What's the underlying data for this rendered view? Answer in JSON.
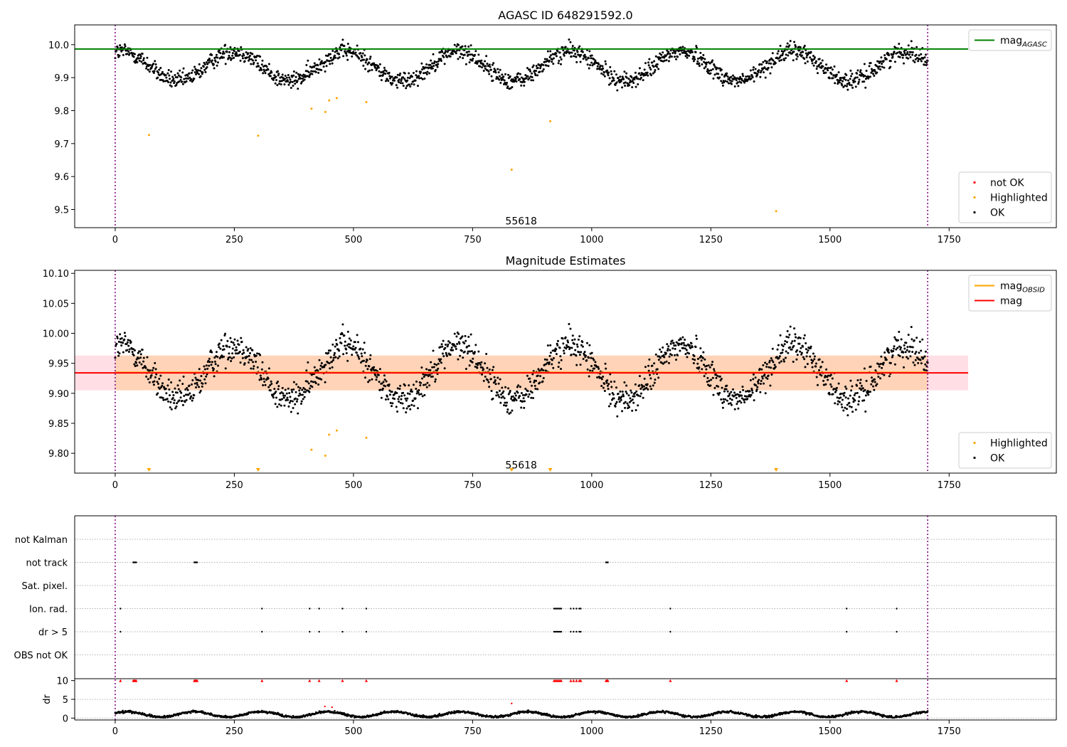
{
  "chart_data": [
    {
      "type": "scatter",
      "title": "AGASC ID 648291592.0",
      "xlim": [
        -85,
        1975
      ],
      "ylim": [
        9.445,
        10.06
      ],
      "xticks": [
        0,
        250,
        500,
        750,
        1000,
        1250,
        1500,
        1750
      ],
      "yticks": [
        9.5,
        9.6,
        9.7,
        9.8,
        9.9,
        10.0
      ],
      "ytick_decimals": 1,
      "vlines": [
        0,
        1705
      ],
      "hlines": [
        {
          "name": "mag_AGASC",
          "y": 9.987,
          "x": [
            -85,
            1790
          ],
          "color": "#008000"
        }
      ],
      "obsid_label": {
        "text": "55618",
        "x": 852,
        "y": 9.455
      },
      "legends": [
        {
          "position": "top-right",
          "entries": [
            {
              "label": "mag",
              "sub": "AGASC",
              "kind": "line",
              "color": "#008000"
            }
          ]
        },
        {
          "position": "bottom-right",
          "entries": [
            {
              "label": "not OK",
              "kind": "dot",
              "color": "#ff0000"
            },
            {
              "label": "Highlighted",
              "kind": "dot",
              "color": "#ffa500"
            },
            {
              "label": "OK",
              "kind": "dot",
              "color": "#000000"
            }
          ]
        }
      ],
      "series": [
        {
          "name": "OK",
          "color": "#000000",
          "generated": "lightcurve",
          "n": 1700,
          "x_range": [
            0,
            1705
          ],
          "base": 9.935,
          "amp": 0.045,
          "period": 235,
          "phase": 1.2,
          "noise": 0.013
        },
        {
          "name": "Highlighted",
          "color": "#ffa500",
          "points": [
            [
              71,
              9.726
            ],
            [
              300,
              9.724
            ],
            [
              412,
              9.806
            ],
            [
              441,
              9.796
            ],
            [
              449,
              9.831
            ],
            [
              465,
              9.838
            ],
            [
              527,
              9.826
            ],
            [
              832,
              9.621
            ],
            [
              913,
              9.768
            ],
            [
              1387,
              9.495
            ]
          ]
        }
      ]
    },
    {
      "type": "scatter",
      "title": "Magnitude Estimates",
      "xlim": [
        -85,
        1975
      ],
      "ylim": [
        9.767,
        10.105
      ],
      "xticks": [
        0,
        250,
        500,
        750,
        1000,
        1250,
        1500,
        1750
      ],
      "yticks": [
        9.8,
        9.85,
        9.9,
        9.95,
        10.0,
        10.05,
        10.1
      ],
      "ytick_decimals": 2,
      "vlines": [
        0,
        1705
      ],
      "bands": [
        {
          "y": [
            9.905,
            9.963
          ],
          "x": [
            -85,
            1790
          ],
          "color": "#ffc0cb",
          "opacity": 0.5
        },
        {
          "y": [
            9.905,
            9.963
          ],
          "x": [
            0,
            1705
          ],
          "color": "#ffa500",
          "opacity": 0.2
        }
      ],
      "hlines": [
        {
          "name": "mag_OBSID",
          "y": 9.935,
          "x": [
            0,
            1705
          ],
          "color": "#ffa500"
        },
        {
          "name": "mag",
          "y": 9.934,
          "x": [
            -85,
            1790
          ],
          "color": "#ff0000"
        }
      ],
      "obsid_label": {
        "text": "55618",
        "x": 852,
        "y": 9.775
      },
      "legends": [
        {
          "position": "top-right",
          "entries": [
            {
              "label": "mag",
              "sub": "OBSID",
              "kind": "line",
              "color": "#ffa500"
            },
            {
              "label": "mag",
              "kind": "line",
              "color": "#ff0000"
            }
          ]
        },
        {
          "position": "bottom-right",
          "entries": [
            {
              "label": "Highlighted",
              "kind": "dot",
              "color": "#ffa500"
            },
            {
              "label": "OK",
              "kind": "dot",
              "color": "#000000"
            }
          ]
        }
      ],
      "series": [
        {
          "name": "OK",
          "color": "#000000",
          "generated": "lightcurve",
          "n": 1700,
          "x_range": [
            0,
            1705
          ],
          "base": 9.935,
          "amp": 0.045,
          "period": 235,
          "phase": 1.2,
          "noise": 0.013
        },
        {
          "name": "Highlighted",
          "color": "#ffa500",
          "points": [
            [
              412,
              9.806
            ],
            [
              441,
              9.796
            ],
            [
              449,
              9.831
            ],
            [
              465,
              9.838
            ],
            [
              527,
              9.826
            ]
          ]
        },
        {
          "name": "Highlighted (below axis)",
          "color": "#ffa500",
          "marker": "triangle-down",
          "x": [
            71,
            300,
            832,
            913,
            1387
          ]
        }
      ]
    },
    {
      "type": "flags",
      "xlim": [
        -85,
        1975
      ],
      "xticks": [
        0,
        250,
        500,
        750,
        1000,
        1250,
        1500,
        1750
      ],
      "vlines": [
        0,
        1705
      ],
      "categories": [
        "not Kalman",
        "not track",
        "Sat. pixel.",
        "Ion. rad.",
        "dr > 5",
        "OBS not OK"
      ],
      "flag_points": {
        "not Kalman": [],
        "not track": [
          38,
          40,
          42,
          44,
          166,
          168,
          170,
          172,
          1030,
          1032,
          1034
        ],
        "Sat. pixel.": [],
        "Ion. rad.": [
          11,
          308,
          408,
          428,
          477,
          527,
          921,
          924,
          927,
          930,
          933,
          936,
          956,
          962,
          968,
          974,
          977,
          1165,
          1535,
          1640
        ],
        "dr > 5": [
          11,
          308,
          408,
          428,
          477,
          527,
          921,
          924,
          927,
          930,
          933,
          936,
          956,
          962,
          968,
          974,
          977,
          1165,
          1535,
          1640
        ],
        "OBS not OK": []
      },
      "dr": {
        "ylabel": "dr",
        "ylim": [
          -0.5,
          10.5
        ],
        "yticks": [
          0,
          5,
          10
        ],
        "threshold": 10,
        "generated": "dr",
        "n": 1700,
        "x_range": [
          0,
          1705
        ],
        "clipped_x": [
          11,
          38,
          40,
          42,
          44,
          166,
          168,
          170,
          172,
          308,
          408,
          428,
          477,
          527,
          921,
          924,
          927,
          930,
          933,
          936,
          956,
          962,
          968,
          974,
          977,
          1030,
          1032,
          1034,
          1165,
          1535,
          1640
        ],
        "red_points": [
          [
            440,
            3.1
          ],
          [
            455,
            2.9
          ],
          [
            832,
            3.9
          ]
        ]
      }
    }
  ]
}
